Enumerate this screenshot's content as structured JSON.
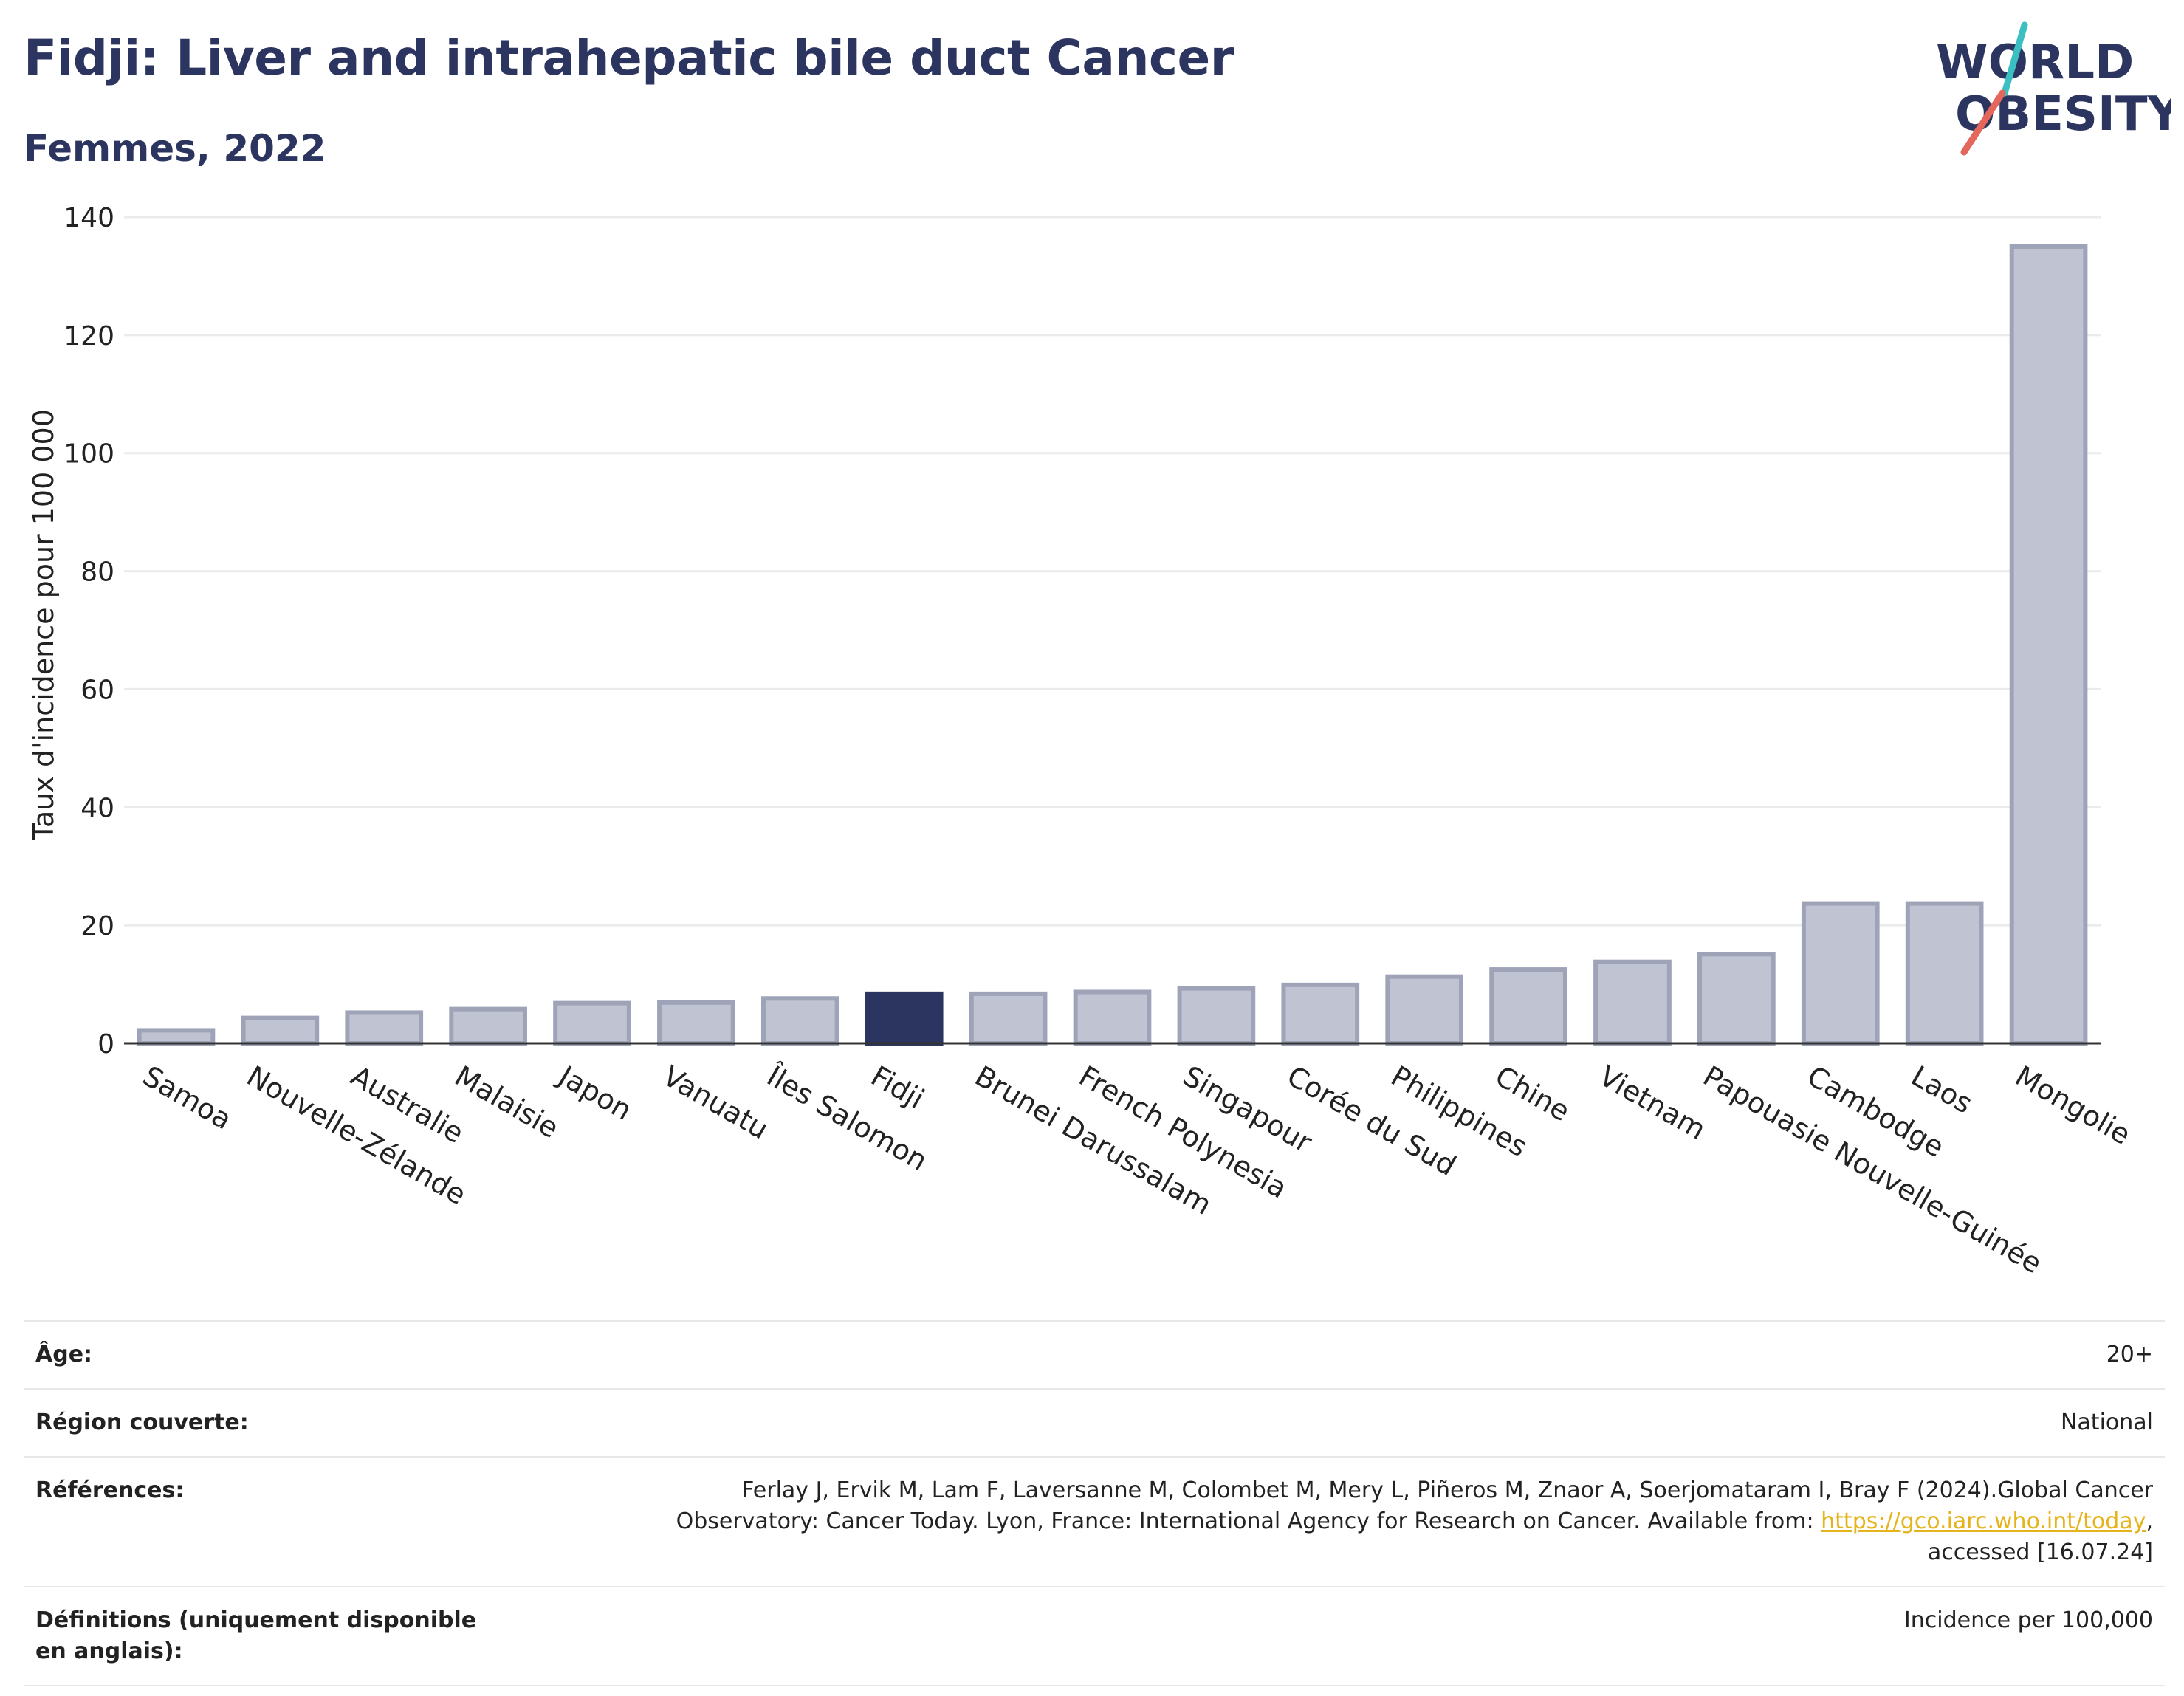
{
  "header": {
    "title": "Fidji: Liver and intrahepatic bile duct Cancer",
    "subtitle": "Femmes, 2022"
  },
  "logo": {
    "line1": "WORLD",
    "line2": "OBESITY",
    "slash_colors": [
      "#3bbfc3",
      "#e5665a"
    ],
    "text_color": "#2b3560"
  },
  "colors": {
    "highlight": "#2b3560",
    "bar_fill": "#c0c3d1",
    "bar_stroke": "#9ea3b8",
    "grid": "#ebebeb",
    "link": "#e5b41c"
  },
  "chart_data": {
    "type": "bar",
    "ylabel": "Taux d'incidence pour 100 000",
    "xlabel": "",
    "ylim": [
      0,
      140
    ],
    "yticks": [
      0,
      20,
      40,
      60,
      80,
      100,
      120,
      140
    ],
    "grid": true,
    "highlight": "Fidji",
    "categories": [
      "Samoa",
      "Nouvelle-Zélande",
      "Australie",
      "Malaisie",
      "Japon",
      "Vanuatu",
      "Îles Salomon",
      "Fidji",
      "Brunei Darussalam",
      "French Polynesia",
      "Singapour",
      "Corée du Sud",
      "Philippines",
      "Chine",
      "Vietnam",
      "Papouasie Nouvelle-Guinée",
      "Cambodge",
      "Laos",
      "Mongolie"
    ],
    "values": [
      2.2,
      4.3,
      5.2,
      5.8,
      6.8,
      6.9,
      7.6,
      8.4,
      8.4,
      8.7,
      9.3,
      9.9,
      11.3,
      12.5,
      13.8,
      15.1,
      23.7,
      23.7,
      135.0
    ]
  },
  "meta": [
    {
      "label": "Âge:",
      "value": "20+"
    },
    {
      "label": "Région couverte:",
      "value": "National"
    },
    {
      "label": "Références:",
      "value_lines": [
        "Ferlay J, Ervik M, Lam F, Laversanne M, Colombet M, Mery L, Piñeros M, Znaor A, Soerjomataram I, Bray F (2024).Global Cancer",
        "Observatory: Cancer Today. Lyon, France: International Agency for Research on Cancer. Available from: ",
        ",",
        "accessed [16.07.24]"
      ],
      "link": "https://gco.iarc.who.int/today"
    },
    {
      "label": "Définitions (uniquement disponible en anglais):",
      "value": "Incidence per 100,000"
    }
  ]
}
